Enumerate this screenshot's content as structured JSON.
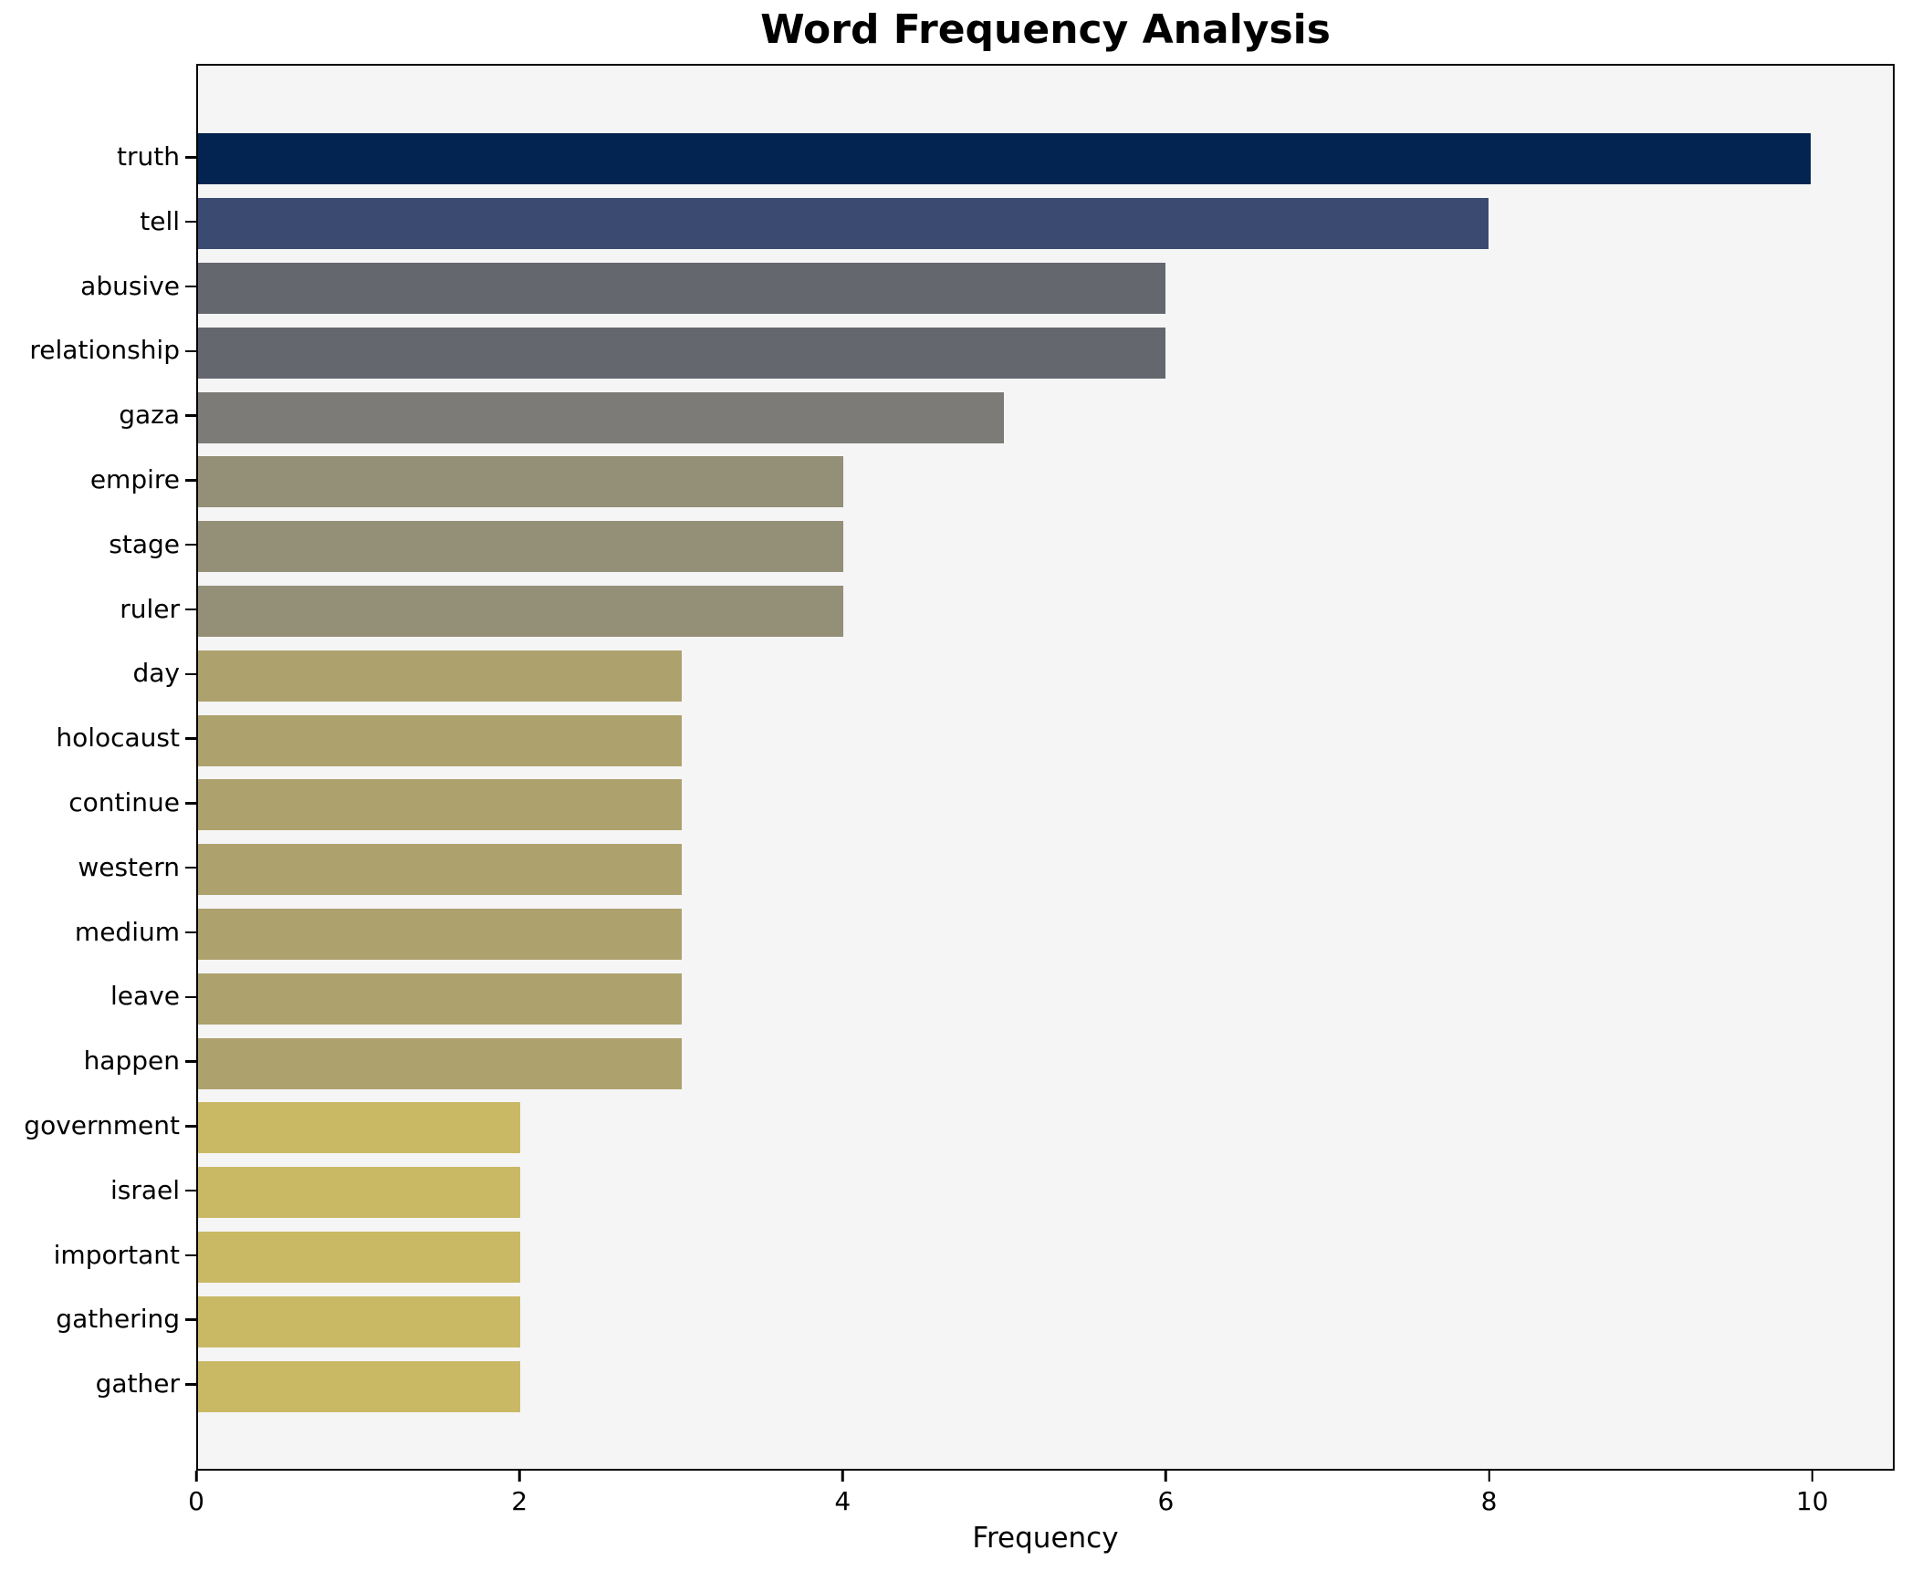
{
  "title": "Word Frequency Analysis",
  "chart_data": {
    "type": "bar",
    "orientation": "horizontal",
    "title": "Word Frequency Analysis",
    "xlabel": "Frequency",
    "ylabel": "",
    "categories": [
      "truth",
      "tell",
      "abusive",
      "relationship",
      "gaza",
      "empire",
      "stage",
      "ruler",
      "day",
      "holocaust",
      "continue",
      "western",
      "medium",
      "leave",
      "happen",
      "government",
      "israel",
      "important",
      "gathering",
      "gather"
    ],
    "values": [
      10,
      8,
      6,
      6,
      5,
      4,
      4,
      4,
      3,
      3,
      3,
      3,
      3,
      3,
      3,
      2,
      2,
      2,
      2,
      2
    ],
    "bar_colors": [
      "#032450",
      "#3a4a70",
      "#65676f",
      "#65676f",
      "#7c7b77",
      "#948f77",
      "#948f77",
      "#948f77",
      "#ada26d",
      "#ada26d",
      "#ada26d",
      "#ada26d",
      "#ada26d",
      "#ada26d",
      "#ada26d",
      "#c9b965",
      "#c9b965",
      "#c9b965",
      "#c9b965",
      "#c9b965"
    ],
    "xlim": [
      0,
      10.51
    ],
    "xticks": [
      0,
      2,
      4,
      6,
      8,
      10
    ],
    "grid": false,
    "legend": "none",
    "plot_background": "#f5f5f6",
    "figure_background": "#ffffff",
    "spine_color": "#000000",
    "bar_height_fraction": 0.8
  }
}
